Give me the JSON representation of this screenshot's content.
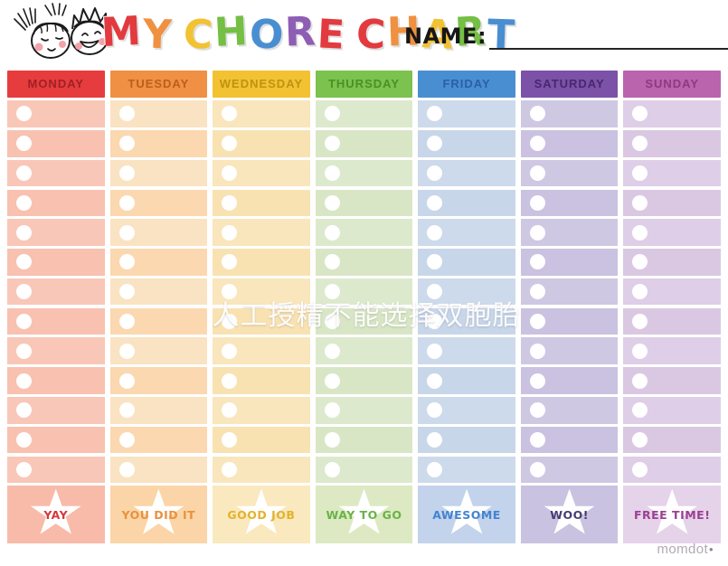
{
  "header": {
    "title": "MY CHORE CHART",
    "title_letters": [
      {
        "ch": "M",
        "color": "#e23a3e"
      },
      {
        "ch": "Y",
        "color": "#ef9140"
      },
      {
        "ch": " ",
        "color": ""
      },
      {
        "ch": "C",
        "color": "#f2c233"
      },
      {
        "ch": "H",
        "color": "#74bf44"
      },
      {
        "ch": "O",
        "color": "#4a8ed2"
      },
      {
        "ch": "R",
        "color": "#8e5db4"
      },
      {
        "ch": "E",
        "color": "#e23a3e"
      },
      {
        "ch": " ",
        "color": ""
      },
      {
        "ch": "C",
        "color": "#e23a3e"
      },
      {
        "ch": "H",
        "color": "#ef9140"
      },
      {
        "ch": "A",
        "color": "#f2c233"
      },
      {
        "ch": "R",
        "color": "#74bf44"
      },
      {
        "ch": "T",
        "color": "#4a8ed2"
      }
    ],
    "name_label": "NAME:",
    "illustration": "two-kids-faces"
  },
  "grid": {
    "rows_per_day": 13,
    "bullet_color": "#ffffff",
    "star_color": "#ffffff"
  },
  "days": [
    {
      "label": "MONDAY",
      "reward": "YAY",
      "colors": {
        "header_bg": "#e73c3e",
        "header_text": "#9e2125",
        "cell": "#f9c7b7",
        "cell_alt": "#f8c1b0",
        "reward_bg": "#f8bba9",
        "reward_text": "#d4383b"
      }
    },
    {
      "label": "TUESDAY",
      "reward": "YOU DID IT",
      "colors": {
        "header_bg": "#f09044",
        "header_text": "#bb5f1c",
        "cell": "#fae3c2",
        "cell_alt": "#fbd8b0",
        "reward_bg": "#fbd5a7",
        "reward_text": "#e8923e"
      }
    },
    {
      "label": "WEDNESDAY",
      "reward": "GOOD JOB",
      "colors": {
        "header_bg": "#f2c233",
        "header_text": "#bf9210",
        "cell": "#f9e6bc",
        "cell_alt": "#f9e2b2",
        "reward_bg": "#fae8bf",
        "reward_text": "#e2b32c"
      }
    },
    {
      "label": "THURSDAY",
      "reward": "WAY TO GO",
      "colors": {
        "header_bg": "#7cc24e",
        "header_text": "#4b8f26",
        "cell": "#dde9cc",
        "cell_alt": "#d9e6c5",
        "reward_bg": "#dde9c3",
        "reward_text": "#69b347"
      }
    },
    {
      "label": "FRIDAY",
      "reward": "AWESOME",
      "colors": {
        "header_bg": "#4a8ed2",
        "header_text": "#2b5fa7",
        "cell": "#cddaec",
        "cell_alt": "#c8d6ea",
        "reward_bg": "#c2d3eb",
        "reward_text": "#4384cf"
      }
    },
    {
      "label": "SATURDAY",
      "reward": "WOO!",
      "colors": {
        "header_bg": "#7b52a7",
        "header_text": "#482770",
        "cell": "#cfc8e3",
        "cell_alt": "#cac2e0",
        "reward_bg": "#c9c2e0",
        "reward_text": "#453d72"
      }
    },
    {
      "label": "SUNDAY",
      "reward": "FREE TIME!",
      "colors": {
        "header_bg": "#ba64ad",
        "header_text": "#8c3a80",
        "cell": "#dfcee7",
        "cell_alt": "#dac8e3",
        "reward_bg": "#e5d3ea",
        "reward_text": "#9c3f92"
      }
    }
  ],
  "watermark": {
    "text": "人工授精不能选择双胞胎"
  },
  "brand": {
    "name": "momdot",
    "dot": "•"
  }
}
